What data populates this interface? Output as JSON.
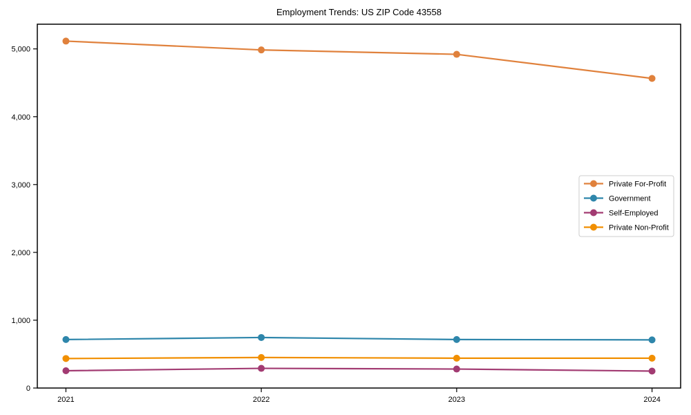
{
  "chart_data": {
    "type": "line",
    "title": "Employment Trends: US ZIP Code 43558",
    "xlabel": "",
    "ylabel": "",
    "categories": [
      "2021",
      "2022",
      "2023",
      "2024"
    ],
    "series": [
      {
        "name": "Private For-Profit",
        "color": "#E0813C",
        "values": [
          5115,
          4985,
          4920,
          4565
        ]
      },
      {
        "name": "Government",
        "color": "#2E86AB",
        "values": [
          715,
          745,
          715,
          710
        ]
      },
      {
        "name": "Self-Employed",
        "color": "#A23B72",
        "values": [
          255,
          290,
          280,
          250
        ]
      },
      {
        "name": "Private Non-Profit",
        "color": "#F18F01",
        "values": [
          435,
          450,
          440,
          440
        ]
      }
    ],
    "y_ticks": [
      0,
      1000,
      2000,
      3000,
      4000,
      5000
    ],
    "y_tick_labels": [
      "0",
      "1,000",
      "2,000",
      "3,000",
      "4,000",
      "5,000"
    ],
    "ylim": [
      0,
      5364
    ],
    "grid": false,
    "legend_position": "center right",
    "marker": "circle",
    "axis_color": "#000000",
    "legend_border_color": "#cccccc",
    "legend_background": "#ffffff"
  }
}
